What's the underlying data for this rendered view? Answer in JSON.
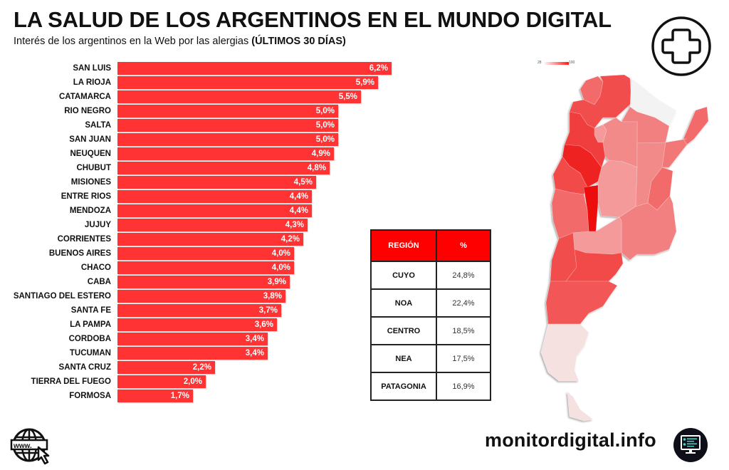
{
  "header": {
    "title": "LA SALUD DE LOS ARGENTINOS EN EL MUNDO DIGITAL",
    "subtitle_main": "Interés de los argentinos en la Web por las alergias ",
    "subtitle_bold": "(ÚLTIMOS 30 DÍAS)"
  },
  "chart_data": [
    {
      "type": "bar",
      "orientation": "horizontal",
      "title": "Interés de los argentinos en la Web por las alergias (ÚLTIMOS 30 DÍAS)",
      "xlabel": "",
      "ylabel": "",
      "unit": "%",
      "xlim": [
        0,
        6.2
      ],
      "grid": false,
      "color": "#ff3333",
      "categories": [
        "SAN LUIS",
        "LA RIOJA",
        "CATAMARCA",
        "RIO NEGRO",
        "SALTA",
        "SAN JUAN",
        "NEUQUEN",
        "CHUBUT",
        "MISIONES",
        "ENTRE RIOS",
        "MENDOZA",
        "JUJUY",
        "CORRIENTES",
        "BUENOS AIRES",
        "CHACO",
        "CABA",
        "SANTIAGO DEL ESTERO",
        "SANTA FE",
        "LA PAMPA",
        "CORDOBA",
        "TUCUMAN",
        "SANTA CRUZ",
        "TIERRA DEL FUEGO",
        "FORMOSA"
      ],
      "values": [
        6.2,
        5.9,
        5.5,
        5.0,
        5.0,
        5.0,
        4.9,
        4.8,
        4.5,
        4.4,
        4.4,
        4.3,
        4.2,
        4.0,
        4.0,
        3.9,
        3.8,
        3.7,
        3.6,
        3.4,
        3.4,
        2.2,
        2.0,
        1.7
      ],
      "value_labels": [
        "6,2%",
        "5,9%",
        "5,5%",
        "5,0%",
        "5,0%",
        "5,0%",
        "4,9%",
        "4,8%",
        "4,5%",
        "4,4%",
        "4,4%",
        "4,3%",
        "4,2%",
        "4,0%",
        "4,0%",
        "3,9%",
        "3,8%",
        "3,7%",
        "3,6%",
        "3,4%",
        "3,4%",
        "2,2%",
        "2,0%",
        "1,7%"
      ]
    },
    {
      "type": "table",
      "columns": [
        "REGIÓN",
        "%"
      ],
      "rows": [
        [
          "CUYO",
          "24,8%"
        ],
        [
          "NOA",
          "22,4%"
        ],
        [
          "CENTRO",
          "18,5%"
        ],
        [
          "NEA",
          "17,5%"
        ],
        [
          "PATAGONIA",
          "16,9%"
        ]
      ],
      "header_color": "#ff0000"
    },
    {
      "type": "heatmap",
      "title": "Mapa de Argentina por provincia",
      "legend": {
        "min": "28",
        "max": "100",
        "min_color": "#ffffff",
        "max_color": "#ff1a1a",
        "placement": "top-left"
      }
    }
  ],
  "icons": {
    "top_right": "medical-cross-icon",
    "bottom_left": "www-globe-cursor-icon",
    "bottom_right": "monitor-dashboard-icon"
  },
  "footer": {
    "brand": "monitordigital.info"
  }
}
